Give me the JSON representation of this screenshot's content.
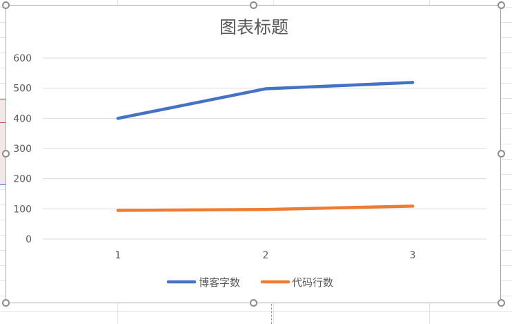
{
  "chart_data": {
    "type": "line",
    "title": "图表标题",
    "categories": [
      "1",
      "2",
      "3"
    ],
    "series": [
      {
        "name": "博客字数",
        "values": [
          400,
          498,
          519
        ],
        "color": "#4472c4"
      },
      {
        "name": "代码行数",
        "values": [
          95,
          98,
          109
        ],
        "color": "#ed7d31"
      }
    ],
    "ylim": [
      0,
      600
    ],
    "yticks": [
      0,
      100,
      200,
      300,
      400,
      500,
      600
    ],
    "ytick_labels": [
      "0",
      "100",
      "200",
      "300",
      "400",
      "500",
      "600"
    ],
    "grid": true,
    "legend": "bottom",
    "xlabel": "",
    "ylabel": ""
  }
}
